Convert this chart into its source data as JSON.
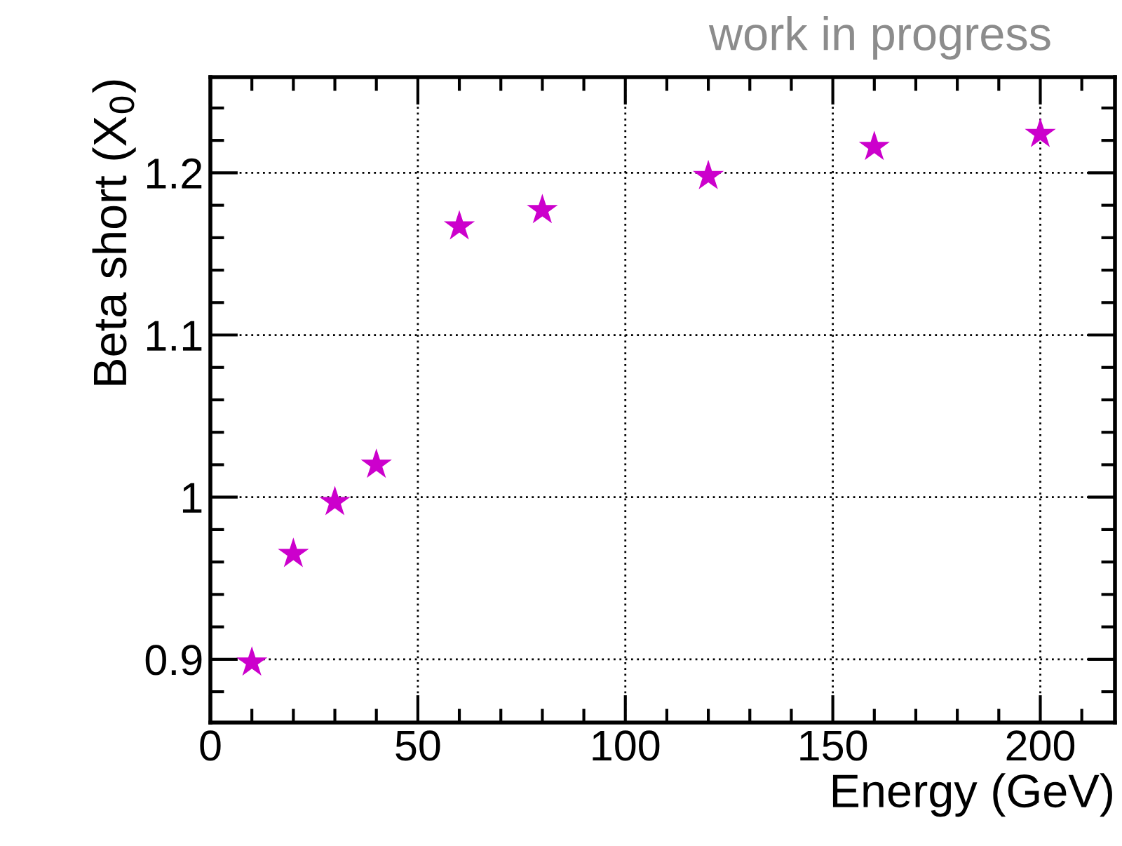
{
  "chart_data": {
    "type": "scatter",
    "xlabel": "Energy (GeV)",
    "ylabel": "Beta short (X$_{0}$)",
    "annotations": [
      "work in progress"
    ],
    "x": [
      10,
      20,
      30,
      40,
      60,
      80,
      120,
      160,
      200
    ],
    "series": [
      {
        "color": "#cc00cc",
        "values": [
          0.898,
          0.965,
          0.997,
          1.02,
          1.167,
          1.177,
          1.198,
          1.216,
          1.224
        ]
      }
    ],
    "xlim": [
      0,
      218
    ],
    "xticks": [
      0,
      50,
      100,
      150,
      200
    ],
    "ylim": [
      0.861,
      1.259
    ],
    "yticks": [
      0.9,
      1.1,
      1.2,
      {
        "value": 1.0,
        "label": "1"
      }
    ],
    "grid": true,
    "marker": "star",
    "legend": false
  }
}
